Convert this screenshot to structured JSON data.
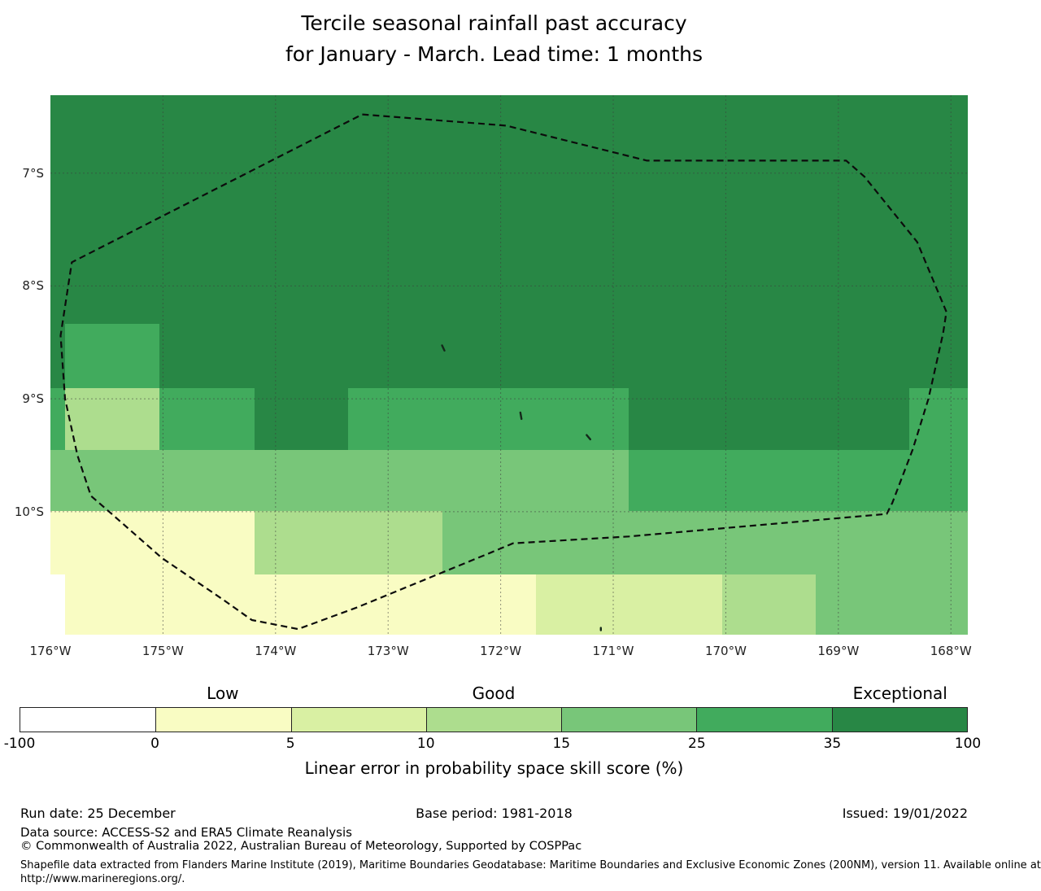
{
  "title": {
    "line1": "Tercile seasonal rainfall past accuracy",
    "line2": "for January - March. Lead time: 1 months"
  },
  "chart_data": {
    "type": "heatmap",
    "subtype": "geographic-categorical-skill-map",
    "map_extent": {
      "lon_west_max": 176.0,
      "lon_west_min": 167.85,
      "lat_south_min": 6.31,
      "lat_south_max": 11.09
    },
    "x_ticks": [
      {
        "label": "176°W",
        "lon": 176
      },
      {
        "label": "175°W",
        "lon": 175
      },
      {
        "label": "174°W",
        "lon": 174
      },
      {
        "label": "173°W",
        "lon": 173
      },
      {
        "label": "172°W",
        "lon": 172
      },
      {
        "label": "171°W",
        "lon": 171
      },
      {
        "label": "170°W",
        "lon": 170
      },
      {
        "label": "169°W",
        "lon": 169
      },
      {
        "label": "168°W",
        "lon": 168
      }
    ],
    "y_ticks": [
      {
        "label": "7°S",
        "lat": 7
      },
      {
        "label": "8°S",
        "lat": 8
      },
      {
        "label": "9°S",
        "lat": 9
      },
      {
        "label": "10°S",
        "lat": 10
      }
    ],
    "grid": {
      "on": true,
      "style": "dashed"
    },
    "bins": [
      {
        "range": [
          -100,
          0
        ],
        "key": "-100-0",
        "color": "#ffffff"
      },
      {
        "range": [
          0,
          5
        ],
        "key": "0-5",
        "color": "#f9fcc3"
      },
      {
        "range": [
          5,
          10
        ],
        "key": "5-10",
        "color": "#d9f0a3"
      },
      {
        "range": [
          10,
          15
        ],
        "key": "10-15",
        "color": "#addd8e"
      },
      {
        "range": [
          15,
          25
        ],
        "key": "15-25",
        "color": "#78c679"
      },
      {
        "range": [
          25,
          35
        ],
        "key": "25-35",
        "color": "#41ab5d"
      },
      {
        "range": [
          35,
          100
        ],
        "key": "35-100",
        "color": "#288745"
      }
    ],
    "cells_rows": [
      {
        "lat": [
          6.31,
          8.335
        ],
        "segments": [
          {
            "lon": [
              176.0,
              167.85
            ],
            "cat": "35-100"
          }
        ]
      },
      {
        "lat": [
          8.335,
          8.905
        ],
        "segments": [
          {
            "lon": [
              176.0,
              175.87
            ],
            "cat": "35-100"
          },
          {
            "lon": [
              175.87,
              175.03
            ],
            "cat": "25-35"
          },
          {
            "lon": [
              175.03,
              167.85
            ],
            "cat": "35-100"
          }
        ]
      },
      {
        "lat": [
          8.905,
          9.45
        ],
        "segments": [
          {
            "lon": [
              176.0,
              175.87
            ],
            "cat": "25-35"
          },
          {
            "lon": [
              175.87,
              175.03
            ],
            "cat": "10-15"
          },
          {
            "lon": [
              175.03,
              174.19
            ],
            "cat": "25-35"
          },
          {
            "lon": [
              174.19,
              173.355
            ],
            "cat": "35-100"
          },
          {
            "lon": [
              173.355,
              170.86
            ],
            "cat": "25-35"
          },
          {
            "lon": [
              170.86,
              168.37
            ],
            "cat": "35-100"
          },
          {
            "lon": [
              168.37,
              167.85
            ],
            "cat": "25-35"
          }
        ]
      },
      {
        "lat": [
          9.45,
          9.995
        ],
        "segments": [
          {
            "lon": [
              176.0,
              170.86
            ],
            "cat": "15-25"
          },
          {
            "lon": [
              170.86,
              167.85
            ],
            "cat": "25-35"
          }
        ]
      },
      {
        "lat": [
          9.995,
          10.555
        ],
        "segments": [
          {
            "lon": [
              176.0,
              174.19
            ],
            "cat": "0-5"
          },
          {
            "lon": [
              174.19,
              172.52
            ],
            "cat": "10-15"
          },
          {
            "lon": [
              172.52,
              167.85
            ],
            "cat": "15-25"
          }
        ]
      },
      {
        "lat": [
          10.555,
          11.09
        ],
        "segments": [
          {
            "lon": [
              176.0,
              175.87
            ],
            "cat": "-100-0"
          },
          {
            "lon": [
              175.87,
              171.69
            ],
            "cat": "0-5"
          },
          {
            "lon": [
              171.69,
              170.03
            ],
            "cat": "5-10"
          },
          {
            "lon": [
              170.03,
              169.2
            ],
            "cat": "10-15"
          },
          {
            "lon": [
              169.2,
              167.85
            ],
            "cat": "15-25"
          }
        ]
      }
    ],
    "eez_boundary_lonlat": [
      [
        173.23,
        6.48
      ],
      [
        171.95,
        6.58
      ],
      [
        170.7,
        6.89
      ],
      [
        168.93,
        6.89
      ],
      [
        168.77,
        7.03
      ],
      [
        168.3,
        7.61
      ],
      [
        168.04,
        8.23
      ],
      [
        168.07,
        8.42
      ],
      [
        168.2,
        9.0
      ],
      [
        168.34,
        9.45
      ],
      [
        168.52,
        9.92
      ],
      [
        168.57,
        10.02
      ],
      [
        170.86,
        10.22
      ],
      [
        171.89,
        10.28
      ],
      [
        172.08,
        10.36
      ],
      [
        173.28,
        10.85
      ],
      [
        173.8,
        11.04
      ],
      [
        174.21,
        10.96
      ],
      [
        174.48,
        10.77
      ],
      [
        175.01,
        10.41
      ],
      [
        175.49,
        9.99
      ],
      [
        175.64,
        9.86
      ],
      [
        175.76,
        9.5
      ],
      [
        175.87,
        9.0
      ],
      [
        175.91,
        8.44
      ],
      [
        175.81,
        7.79
      ]
    ],
    "islands_lonlat": [
      {
        "lon": 172.51,
        "lat": 8.55,
        "len": 7,
        "angle": 25
      },
      {
        "lon": 171.82,
        "lat": 9.15,
        "len": 8,
        "angle": 10
      },
      {
        "lon": 171.22,
        "lat": 9.34,
        "len": 7,
        "angle": 40
      },
      {
        "lon": 171.11,
        "lat": 11.04,
        "len": 3,
        "angle": 0
      }
    ],
    "colorbar": {
      "tick_values": [
        "-100",
        "0",
        "5",
        "10",
        "15",
        "25",
        "35",
        "100"
      ],
      "category_labels": [
        {
          "text": "Low",
          "bin_index": 1
        },
        {
          "text": "Good",
          "bin_index": 3
        },
        {
          "text": "Exceptional",
          "bin_index": 6
        }
      ],
      "caption": "Linear error in probability space skill score (%)"
    }
  },
  "footer": {
    "run_date": "Run date: 25 December",
    "base_period": "Base period: 1981-2018",
    "issued": "Issued: 19/01/2022",
    "data_source": "Data source: ACCESS-S2 and ERA5 Climate Reanalysis",
    "copyright": "© Commonwealth of Australia 2022, Australian Bureau of Meteorology, Supported by COSPPac",
    "shapefile_line1": "Shapefile data extracted from Flanders Marine Institute (2019), Maritime Boundaries Geodatabase: Maritime Boundaries and Exclusive Economic Zones (200NM), version 11. Available online at",
    "shapefile_line2": "http://www.marineregions.org/."
  }
}
